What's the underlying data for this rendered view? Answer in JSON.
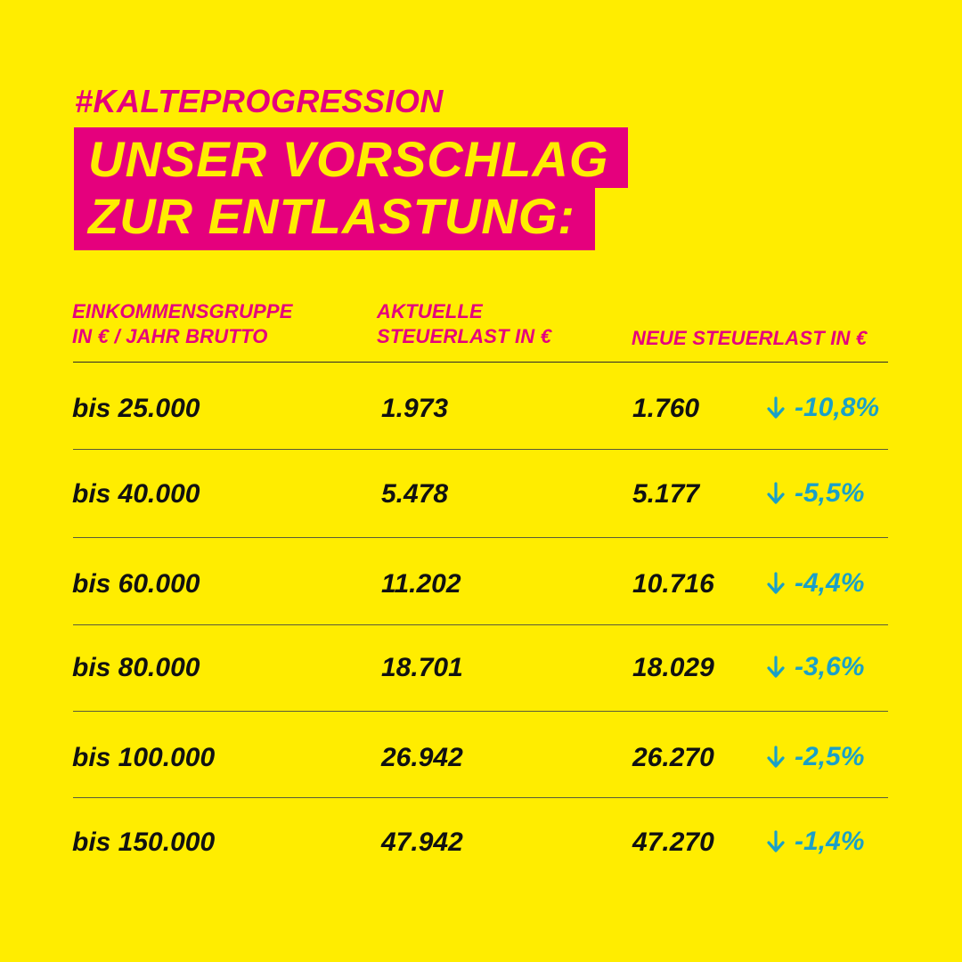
{
  "header": {
    "hashtag": "#KALTEPROGRESSION",
    "title_line1": "UNSER VORSCHLAG",
    "title_line2": "ZUR ENTLASTUNG:"
  },
  "columns": {
    "group_line1": "EINKOMMENSGRUPPE",
    "group_line2": "IN € / JAHR BRUTTO",
    "current_line1": "AKTUELLE",
    "current_line2": "STEUERLAST IN €",
    "new": "NEUE STEUERLAST IN €"
  },
  "rows": [
    {
      "group": "bis 25.000",
      "current": "1.973",
      "new": "1.760",
      "change": "-10,8%"
    },
    {
      "group": "bis 40.000",
      "current": "5.478",
      "new": "5.177",
      "change": "-5,5%"
    },
    {
      "group": "bis 60.000",
      "current": "11.202",
      "new": "10.716",
      "change": "-4,4%"
    },
    {
      "group": "bis 80.000",
      "current": "18.701",
      "new": "18.029",
      "change": "-3,6%"
    },
    {
      "group": "bis 100.000",
      "current": "26.942",
      "new": "26.270",
      "change": "-2,5%"
    },
    {
      "group": "bis 150.000",
      "current": "47.942",
      "new": "47.270",
      "change": "-1,4%"
    }
  ],
  "colors": {
    "background": "#FFED00",
    "accent": "#E5007D",
    "decrease": "#1AA0C8",
    "text": "#111111"
  },
  "icons": {
    "decrease": "arrow-down-icon"
  }
}
